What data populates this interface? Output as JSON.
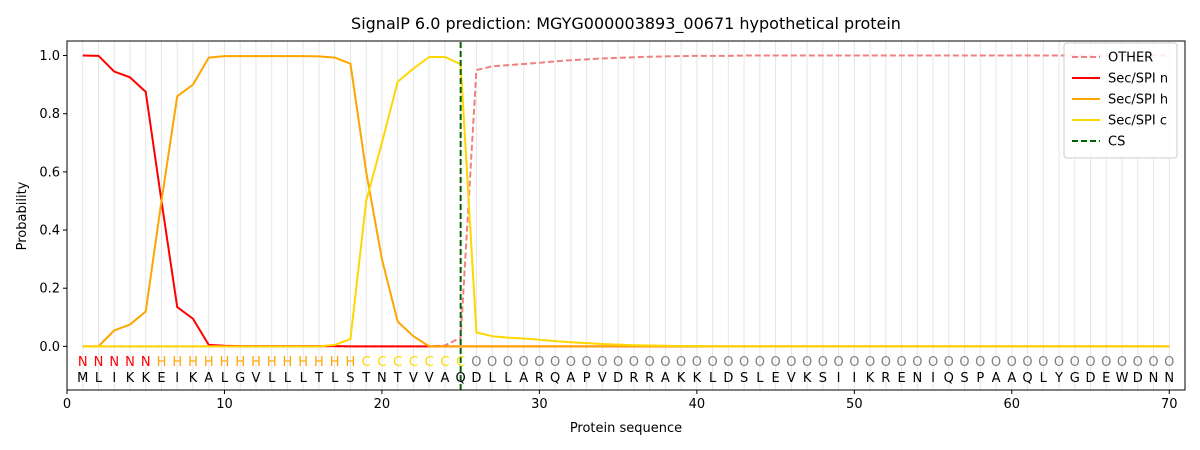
{
  "chart_data": {
    "type": "line",
    "title": "SignalP 6.0 prediction: MGYG000003893_00671 hypothetical protein",
    "xlabel": "Protein sequence",
    "ylabel": "Probability",
    "xlim": [
      0,
      71
    ],
    "ylim": [
      -0.15,
      1.05
    ],
    "x_ticks": [
      0,
      10,
      20,
      30,
      40,
      50,
      60,
      70
    ],
    "y_ticks": [
      0.0,
      0.2,
      0.4,
      0.6,
      0.8,
      1.0
    ],
    "x_tick_labels": [
      "0",
      "10",
      "20",
      "30",
      "40",
      "50",
      "60",
      "70"
    ],
    "y_tick_labels": [
      "0.0",
      "0.2",
      "0.4",
      "0.6",
      "0.8",
      "1.0"
    ],
    "grid": "vertical lines at each residue",
    "legend_position": "top-right",
    "sequence": [
      "M",
      "L",
      "I",
      "K",
      "K",
      "E",
      "I",
      "K",
      "A",
      "L",
      "G",
      "V",
      "L",
      "L",
      "L",
      "T",
      "L",
      "S",
      "T",
      "N",
      "T",
      "V",
      "V",
      "A",
      "Q",
      "D",
      "L",
      "L",
      "A",
      "R",
      "Q",
      "A",
      "P",
      "V",
      "D",
      "R",
      "R",
      "A",
      "K",
      "K",
      "L",
      "D",
      "S",
      "L",
      "E",
      "V",
      "K",
      "S",
      "I",
      "I",
      "K",
      "R",
      "E",
      "N",
      "I",
      "Q",
      "S",
      "P",
      "A",
      "A",
      "Q",
      "L",
      "Y",
      "G",
      "D",
      "E",
      "W",
      "D",
      "N",
      "N"
    ],
    "labels": [
      "N",
      "N",
      "N",
      "N",
      "N",
      "H",
      "H",
      "H",
      "H",
      "H",
      "H",
      "H",
      "H",
      "H",
      "H",
      "H",
      "H",
      "H",
      "C",
      "C",
      "C",
      "C",
      "C",
      "C",
      "C",
      "O",
      "O",
      "O",
      "O",
      "O",
      "O",
      "O",
      "O",
      "O",
      "O",
      "O",
      "O",
      "O",
      "O",
      "O",
      "O",
      "O",
      "O",
      "O",
      "O",
      "O",
      "O",
      "O",
      "O",
      "O",
      "O",
      "O",
      "O",
      "O",
      "O",
      "O",
      "O",
      "O",
      "O",
      "O",
      "O",
      "O",
      "O",
      "O",
      "O",
      "O",
      "O",
      "O",
      "O",
      "O"
    ],
    "label_colors": {
      "N": "#ff0000",
      "H": "#ffa500",
      "C": "#ffd700",
      "O": "#808080"
    },
    "cleavage_site": 25,
    "series": [
      {
        "name": "OTHER",
        "color": "#f08080",
        "dash": "dashed",
        "x": [
          1,
          2,
          3,
          4,
          5,
          6,
          7,
          8,
          9,
          10,
          11,
          12,
          13,
          14,
          15,
          16,
          17,
          18,
          19,
          20,
          21,
          22,
          23,
          24,
          25,
          26,
          27,
          28,
          29,
          30,
          31,
          32,
          33,
          34,
          35,
          36,
          37,
          38,
          39,
          40,
          41,
          42,
          43,
          44,
          45,
          46,
          47,
          48,
          49,
          50,
          51,
          52,
          53,
          54,
          55,
          56,
          57,
          58,
          59,
          60,
          61,
          62,
          63,
          64,
          65,
          66,
          67,
          68,
          69,
          70
        ],
        "values": [
          0,
          0,
          0,
          0,
          0,
          0,
          0,
          0,
          0,
          0,
          0,
          0,
          0,
          0,
          0,
          0,
          0,
          0,
          0,
          0,
          0,
          0,
          0,
          0.003,
          0.03,
          0.95,
          0.963,
          0.967,
          0.971,
          0.975,
          0.98,
          0.984,
          0.987,
          0.99,
          0.992,
          0.994,
          0.996,
          0.997,
          0.998,
          0.999,
          0.999,
          0.999,
          1,
          1,
          1,
          1,
          1,
          1,
          1,
          1,
          1,
          1,
          1,
          1,
          1,
          1,
          1,
          1,
          1,
          1,
          1,
          1,
          1,
          1,
          1,
          1,
          1,
          1,
          1,
          1
        ]
      },
      {
        "name": "Sec/SPI n",
        "color": "#ff0000",
        "dash": "solid",
        "x": [
          1,
          2,
          3,
          4,
          5,
          6,
          7,
          8,
          9,
          10,
          11,
          12,
          13,
          14,
          15,
          16,
          17,
          18,
          19,
          20,
          21,
          22,
          23,
          24,
          25,
          26,
          27,
          28,
          29,
          30,
          31,
          32,
          33,
          34,
          35,
          36,
          37,
          38,
          39,
          40,
          41,
          42,
          43,
          44,
          45,
          46,
          47,
          48,
          49,
          50,
          51,
          52,
          53,
          54,
          55,
          56,
          57,
          58,
          59,
          60,
          61,
          62,
          63,
          64,
          65,
          66,
          67,
          68,
          69,
          70
        ],
        "values": [
          1.0,
          0.999,
          0.945,
          0.925,
          0.875,
          0.5,
          0.135,
          0.095,
          0.005,
          0.002,
          0.001,
          0.001,
          0.001,
          0.001,
          0.001,
          0.001,
          0.001,
          0,
          0,
          0,
          0,
          0,
          0,
          0,
          0,
          0,
          0,
          0,
          0,
          0,
          0,
          0,
          0,
          0,
          0,
          0,
          0,
          0,
          0,
          0,
          0,
          0,
          0,
          0,
          0,
          0,
          0,
          0,
          0,
          0,
          0,
          0,
          0,
          0,
          0,
          0,
          0,
          0,
          0,
          0,
          0,
          0,
          0,
          0,
          0,
          0,
          0,
          0,
          0,
          0
        ]
      },
      {
        "name": "Sec/SPI h",
        "color": "#ffa500",
        "dash": "solid",
        "x": [
          1,
          2,
          3,
          4,
          5,
          6,
          7,
          8,
          9,
          10,
          11,
          12,
          13,
          14,
          15,
          16,
          17,
          18,
          19,
          20,
          21,
          22,
          23,
          24,
          25,
          26,
          27,
          28,
          29,
          30,
          31,
          32,
          33,
          34,
          35,
          36,
          37,
          38,
          39,
          40,
          41,
          42,
          43,
          44,
          45,
          46,
          47,
          48,
          49,
          50,
          51,
          52,
          53,
          54,
          55,
          56,
          57,
          58,
          59,
          60,
          61,
          62,
          63,
          64,
          65,
          66,
          67,
          68,
          69,
          70
        ],
        "values": [
          0,
          0,
          0.055,
          0.075,
          0.12,
          0.5,
          0.86,
          0.9,
          0.993,
          0.998,
          0.998,
          0.998,
          0.998,
          0.998,
          0.998,
          0.997,
          0.993,
          0.972,
          0.6,
          0.3,
          0.085,
          0.035,
          0,
          0,
          0,
          0,
          0,
          0,
          0,
          0,
          0,
          0,
          0,
          0,
          0,
          0,
          0,
          0,
          0,
          0,
          0,
          0,
          0,
          0,
          0,
          0,
          0,
          0,
          0,
          0,
          0,
          0,
          0,
          0,
          0,
          0,
          0,
          0,
          0,
          0,
          0,
          0,
          0,
          0,
          0,
          0,
          0,
          0,
          0,
          0
        ]
      },
      {
        "name": "Sec/SPI c",
        "color": "#ffd700",
        "dash": "solid",
        "x": [
          1,
          2,
          3,
          4,
          5,
          6,
          7,
          8,
          9,
          10,
          11,
          12,
          13,
          14,
          15,
          16,
          17,
          18,
          19,
          20,
          21,
          22,
          23,
          24,
          25,
          26,
          27,
          28,
          29,
          30,
          31,
          32,
          33,
          34,
          35,
          36,
          37,
          38,
          39,
          40,
          41,
          42,
          43,
          44,
          45,
          46,
          47,
          48,
          49,
          50,
          51,
          52,
          53,
          54,
          55,
          56,
          57,
          58,
          59,
          60,
          61,
          62,
          63,
          64,
          65,
          66,
          67,
          68,
          69,
          70
        ],
        "values": [
          0,
          0,
          0,
          0,
          0,
          0,
          0,
          0,
          0,
          0,
          0,
          0,
          0,
          0,
          0,
          0,
          0.005,
          0.025,
          0.5,
          0.7,
          0.91,
          0.955,
          0.995,
          0.995,
          0.97,
          0.048,
          0.035,
          0.03,
          0.027,
          0.023,
          0.018,
          0.014,
          0.011,
          0.008,
          0.006,
          0.004,
          0.003,
          0.002,
          0.001,
          0.001,
          0,
          0,
          0,
          0,
          0,
          0,
          0,
          0,
          0,
          0,
          0,
          0,
          0,
          0,
          0,
          0,
          0,
          0,
          0,
          0,
          0,
          0,
          0,
          0,
          0,
          0,
          0,
          0,
          0,
          0
        ]
      },
      {
        "name": "CS",
        "color": "#006400",
        "dash": "dashed",
        "x": [
          25,
          25
        ],
        "values": [
          -0.15,
          1.05
        ]
      }
    ]
  }
}
